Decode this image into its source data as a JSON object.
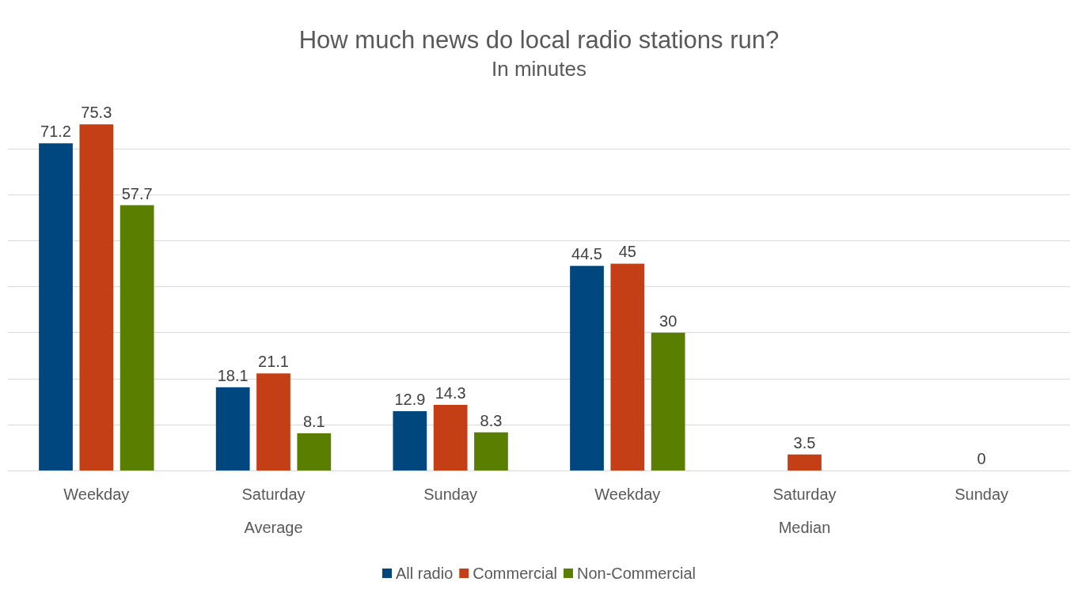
{
  "chart_data": {
    "type": "bar",
    "title": "How much news do local radio stations run?",
    "subtitle": "In minutes",
    "categories": [
      "Weekday",
      "Saturday",
      "Sunday",
      "Weekday",
      "Saturday",
      "Sunday"
    ],
    "annotations": [
      "Average",
      "Median"
    ],
    "series": [
      {
        "name": "All radio",
        "color": "#00477f",
        "values": [
          71.2,
          18.1,
          12.9,
          44.5,
          0,
          0
        ],
        "value_labels": [
          "71.2",
          "18.1",
          "12.9",
          "44.5",
          null,
          null
        ]
      },
      {
        "name": "Commercial",
        "color": "#c43f15",
        "values": [
          75.3,
          21.1,
          14.3,
          45,
          3.5,
          0
        ],
        "value_labels": [
          "75.3",
          "21.1",
          "14.3",
          "45",
          "3.5",
          "0"
        ]
      },
      {
        "name": "Non-Commercial",
        "color": "#5a7f00",
        "values": [
          57.7,
          8.1,
          8.3,
          30,
          0,
          0
        ],
        "value_labels": [
          "57.7",
          "8.1",
          "8.3",
          "30",
          null,
          null
        ]
      }
    ],
    "yticks": [
      {
        "value": 0,
        "label": null
      },
      {
        "value": 10,
        "label": null
      },
      {
        "value": 20,
        "label": null
      },
      {
        "value": 30,
        "label": null
      },
      {
        "value": 40,
        "label": null
      },
      {
        "value": 50,
        "label": null
      },
      {
        "value": 60,
        "label": null
      },
      {
        "value": 70,
        "label": null
      }
    ],
    "grid": "y",
    "legend": "bottom",
    "tick_labels": "x"
  }
}
